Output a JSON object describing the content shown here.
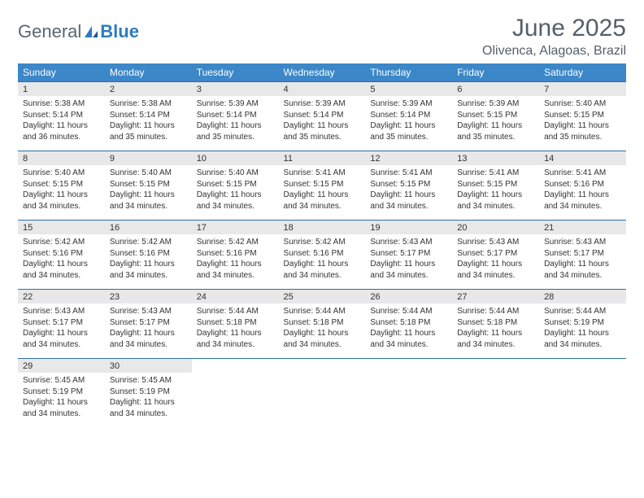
{
  "logo": {
    "text1": "General",
    "text2": "Blue"
  },
  "title": "June 2025",
  "location": "Olivenca, Alagoas, Brazil",
  "colors": {
    "header_bg": "#3b87c8",
    "header_text": "#ffffff",
    "daynum_bg": "#e8e8e8",
    "rule": "#2c6fa8",
    "body_text": "#333333",
    "title_text": "#555f68",
    "logo_gray": "#5a6670",
    "logo_blue": "#2d7bbf",
    "background": "#ffffff"
  },
  "typography": {
    "title_fontsize": 30,
    "location_fontsize": 16,
    "dayhead_fontsize": 12,
    "daynum_fontsize": 11,
    "body_fontsize": 10,
    "font_family": "Arial"
  },
  "day_headers": [
    "Sunday",
    "Monday",
    "Tuesday",
    "Wednesday",
    "Thursday",
    "Friday",
    "Saturday"
  ],
  "weeks": [
    [
      {
        "n": "1",
        "sr": "Sunrise: 5:38 AM",
        "ss": "Sunset: 5:14 PM",
        "dl": "Daylight: 11 hours and 36 minutes."
      },
      {
        "n": "2",
        "sr": "Sunrise: 5:38 AM",
        "ss": "Sunset: 5:14 PM",
        "dl": "Daylight: 11 hours and 35 minutes."
      },
      {
        "n": "3",
        "sr": "Sunrise: 5:39 AM",
        "ss": "Sunset: 5:14 PM",
        "dl": "Daylight: 11 hours and 35 minutes."
      },
      {
        "n": "4",
        "sr": "Sunrise: 5:39 AM",
        "ss": "Sunset: 5:14 PM",
        "dl": "Daylight: 11 hours and 35 minutes."
      },
      {
        "n": "5",
        "sr": "Sunrise: 5:39 AM",
        "ss": "Sunset: 5:14 PM",
        "dl": "Daylight: 11 hours and 35 minutes."
      },
      {
        "n": "6",
        "sr": "Sunrise: 5:39 AM",
        "ss": "Sunset: 5:15 PM",
        "dl": "Daylight: 11 hours and 35 minutes."
      },
      {
        "n": "7",
        "sr": "Sunrise: 5:40 AM",
        "ss": "Sunset: 5:15 PM",
        "dl": "Daylight: 11 hours and 35 minutes."
      }
    ],
    [
      {
        "n": "8",
        "sr": "Sunrise: 5:40 AM",
        "ss": "Sunset: 5:15 PM",
        "dl": "Daylight: 11 hours and 34 minutes."
      },
      {
        "n": "9",
        "sr": "Sunrise: 5:40 AM",
        "ss": "Sunset: 5:15 PM",
        "dl": "Daylight: 11 hours and 34 minutes."
      },
      {
        "n": "10",
        "sr": "Sunrise: 5:40 AM",
        "ss": "Sunset: 5:15 PM",
        "dl": "Daylight: 11 hours and 34 minutes."
      },
      {
        "n": "11",
        "sr": "Sunrise: 5:41 AM",
        "ss": "Sunset: 5:15 PM",
        "dl": "Daylight: 11 hours and 34 minutes."
      },
      {
        "n": "12",
        "sr": "Sunrise: 5:41 AM",
        "ss": "Sunset: 5:15 PM",
        "dl": "Daylight: 11 hours and 34 minutes."
      },
      {
        "n": "13",
        "sr": "Sunrise: 5:41 AM",
        "ss": "Sunset: 5:15 PM",
        "dl": "Daylight: 11 hours and 34 minutes."
      },
      {
        "n": "14",
        "sr": "Sunrise: 5:41 AM",
        "ss": "Sunset: 5:16 PM",
        "dl": "Daylight: 11 hours and 34 minutes."
      }
    ],
    [
      {
        "n": "15",
        "sr": "Sunrise: 5:42 AM",
        "ss": "Sunset: 5:16 PM",
        "dl": "Daylight: 11 hours and 34 minutes."
      },
      {
        "n": "16",
        "sr": "Sunrise: 5:42 AM",
        "ss": "Sunset: 5:16 PM",
        "dl": "Daylight: 11 hours and 34 minutes."
      },
      {
        "n": "17",
        "sr": "Sunrise: 5:42 AM",
        "ss": "Sunset: 5:16 PM",
        "dl": "Daylight: 11 hours and 34 minutes."
      },
      {
        "n": "18",
        "sr": "Sunrise: 5:42 AM",
        "ss": "Sunset: 5:16 PM",
        "dl": "Daylight: 11 hours and 34 minutes."
      },
      {
        "n": "19",
        "sr": "Sunrise: 5:43 AM",
        "ss": "Sunset: 5:17 PM",
        "dl": "Daylight: 11 hours and 34 minutes."
      },
      {
        "n": "20",
        "sr": "Sunrise: 5:43 AM",
        "ss": "Sunset: 5:17 PM",
        "dl": "Daylight: 11 hours and 34 minutes."
      },
      {
        "n": "21",
        "sr": "Sunrise: 5:43 AM",
        "ss": "Sunset: 5:17 PM",
        "dl": "Daylight: 11 hours and 34 minutes."
      }
    ],
    [
      {
        "n": "22",
        "sr": "Sunrise: 5:43 AM",
        "ss": "Sunset: 5:17 PM",
        "dl": "Daylight: 11 hours and 34 minutes."
      },
      {
        "n": "23",
        "sr": "Sunrise: 5:43 AM",
        "ss": "Sunset: 5:17 PM",
        "dl": "Daylight: 11 hours and 34 minutes."
      },
      {
        "n": "24",
        "sr": "Sunrise: 5:44 AM",
        "ss": "Sunset: 5:18 PM",
        "dl": "Daylight: 11 hours and 34 minutes."
      },
      {
        "n": "25",
        "sr": "Sunrise: 5:44 AM",
        "ss": "Sunset: 5:18 PM",
        "dl": "Daylight: 11 hours and 34 minutes."
      },
      {
        "n": "26",
        "sr": "Sunrise: 5:44 AM",
        "ss": "Sunset: 5:18 PM",
        "dl": "Daylight: 11 hours and 34 minutes."
      },
      {
        "n": "27",
        "sr": "Sunrise: 5:44 AM",
        "ss": "Sunset: 5:18 PM",
        "dl": "Daylight: 11 hours and 34 minutes."
      },
      {
        "n": "28",
        "sr": "Sunrise: 5:44 AM",
        "ss": "Sunset: 5:19 PM",
        "dl": "Daylight: 11 hours and 34 minutes."
      }
    ],
    [
      {
        "n": "29",
        "sr": "Sunrise: 5:45 AM",
        "ss": "Sunset: 5:19 PM",
        "dl": "Daylight: 11 hours and 34 minutes."
      },
      {
        "n": "30",
        "sr": "Sunrise: 5:45 AM",
        "ss": "Sunset: 5:19 PM",
        "dl": "Daylight: 11 hours and 34 minutes."
      },
      null,
      null,
      null,
      null,
      null
    ]
  ]
}
